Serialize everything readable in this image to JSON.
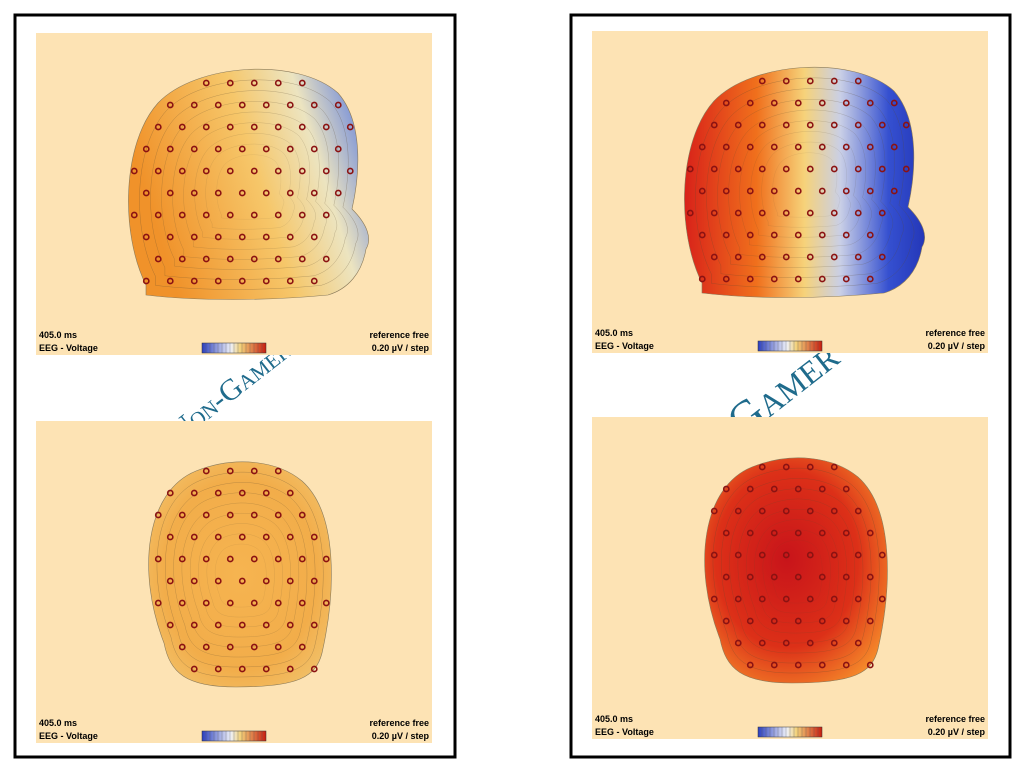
{
  "panels": [
    {
      "label": "Non-Gamer",
      "maps": [
        {
          "time": "405.0 ms",
          "measure": "EEG - Voltage",
          "reference": "reference free",
          "scale": "0.20 µV / step"
        },
        {
          "time": "405.0 ms",
          "measure": "EEG - Voltage",
          "reference": "reference free",
          "scale": "0.20 µV / step"
        }
      ]
    },
    {
      "label": "Gamer",
      "maps": [
        {
          "time": "405.0 ms",
          "measure": "EEG - Voltage",
          "reference": "reference free",
          "scale": "0.20 µV / step"
        },
        {
          "time": "405.0 ms",
          "measure": "EEG - Voltage",
          "reference": "reference free",
          "scale": "0.20 µV / step"
        }
      ]
    }
  ]
}
